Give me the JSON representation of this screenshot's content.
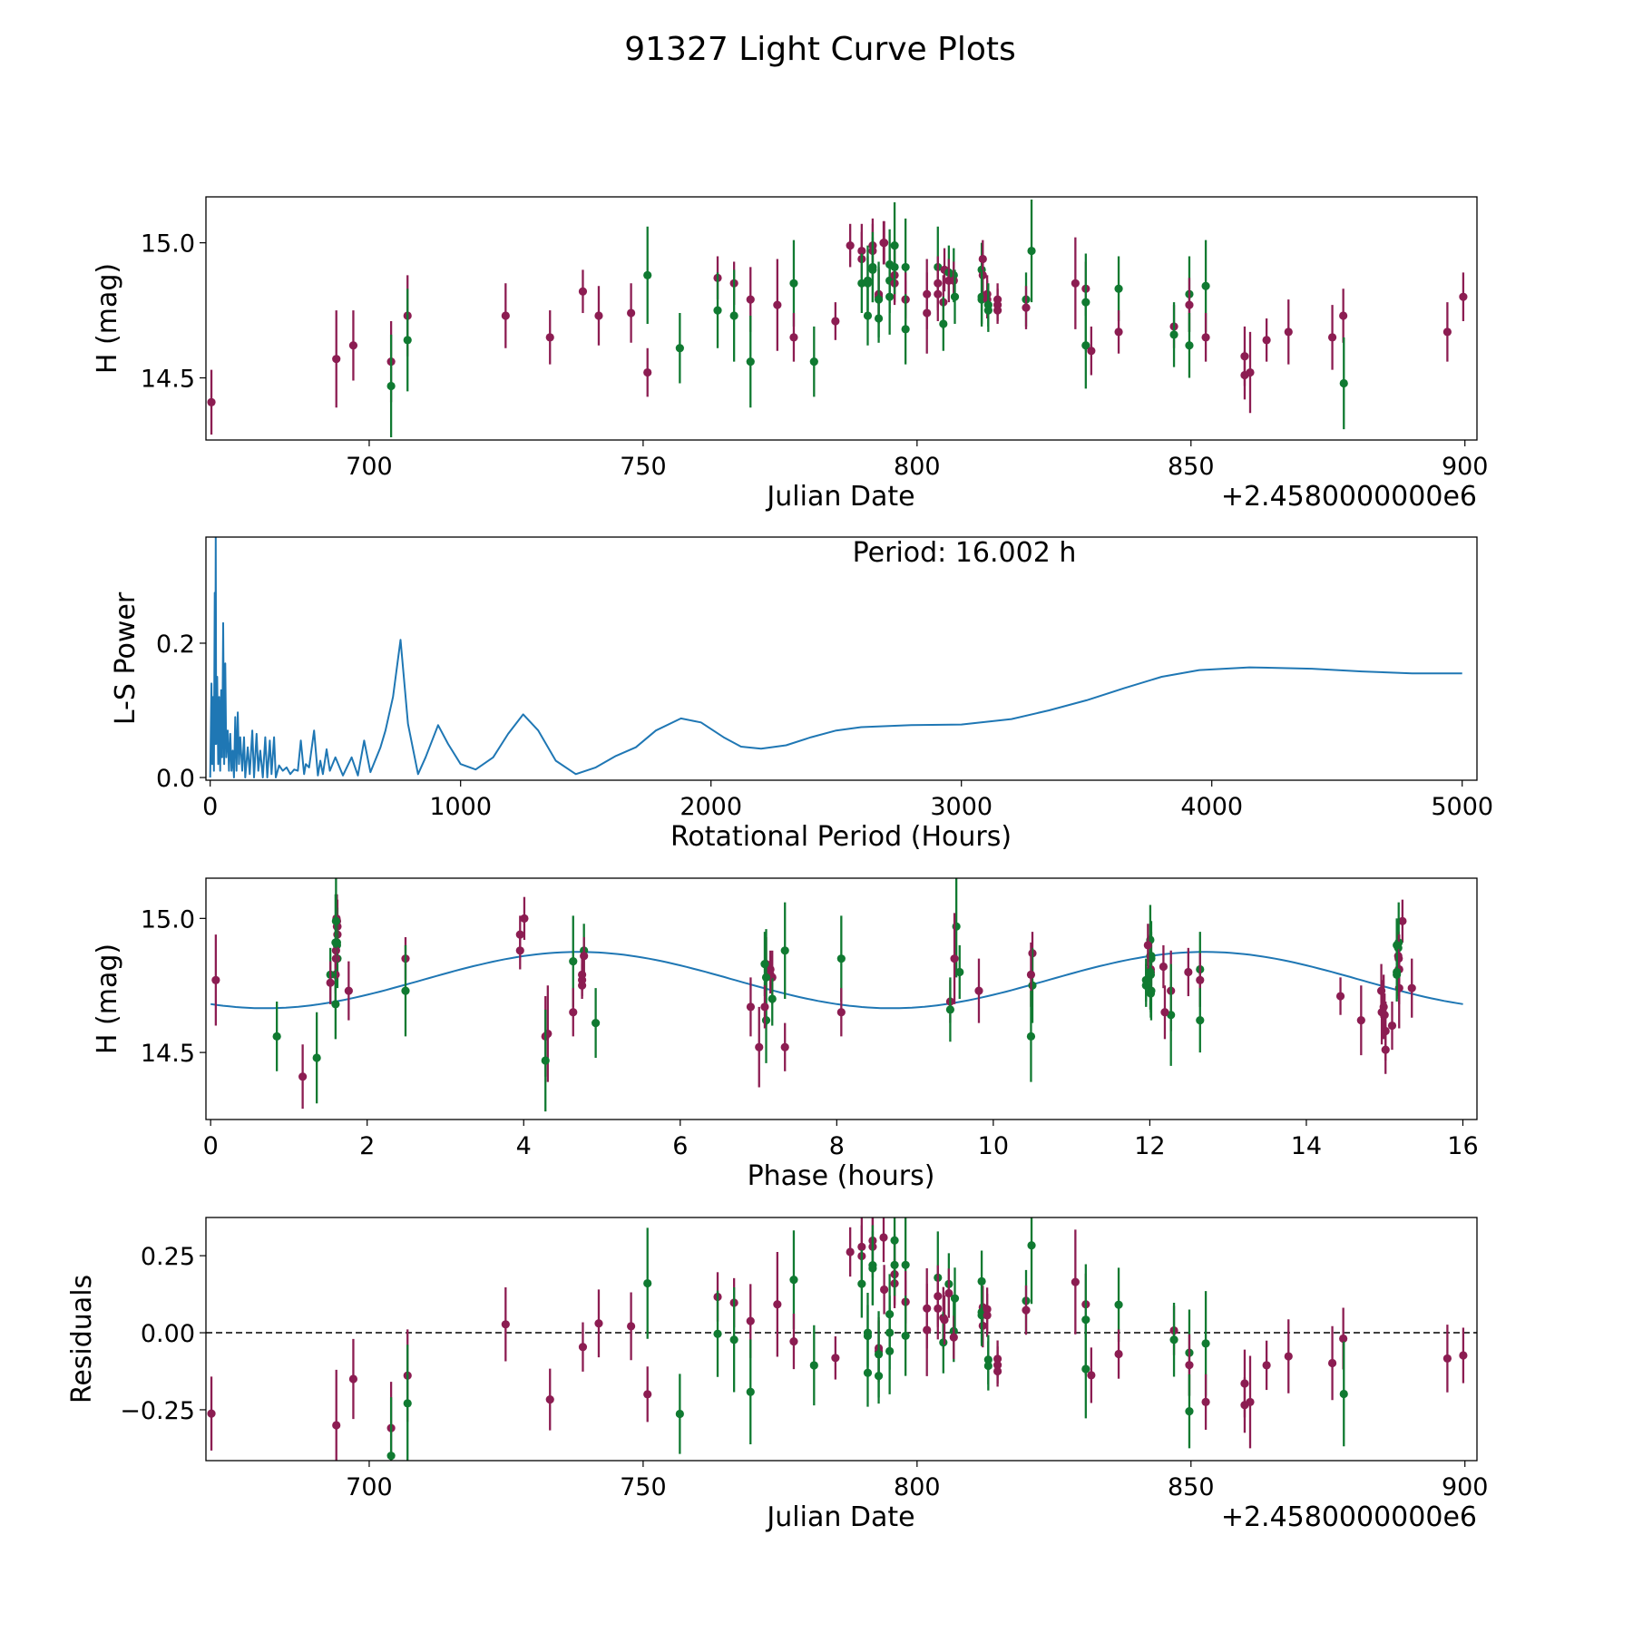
{
  "title": "91327 Light Curve Plots",
  "colors": {
    "band_a": "#8c1d52",
    "band_b": "#107a31",
    "line": "#1f77b4"
  },
  "chart_data": [
    {
      "id": "lightcurve",
      "type": "scatter",
      "xlabel": "Julian Date",
      "ylabel": "H (mag)",
      "offset_text": "+2.4580000000e6",
      "xlim": [
        670.2,
        902.2
      ],
      "ylim": [
        14.27,
        15.17
      ],
      "xticks": [
        700,
        750,
        800,
        850,
        900
      ],
      "xtick_labels": [
        "700",
        "750",
        "800",
        "850",
        "900"
      ],
      "yticks": [
        14.5,
        15.0
      ],
      "ytick_labels": [
        "14.5",
        "15.0"
      ],
      "points_format": [
        "julian_date_offset",
        "H_mag",
        "error",
        "band"
      ],
      "points": [
        [
          671.2,
          14.41,
          0.12,
          "a"
        ],
        [
          694.0,
          14.57,
          0.18,
          "a"
        ],
        [
          697.1,
          14.62,
          0.13,
          "a"
        ],
        [
          704.0,
          14.56,
          0.15,
          "a"
        ],
        [
          704.0,
          14.47,
          0.19,
          "b"
        ],
        [
          707.0,
          14.73,
          0.15,
          "a"
        ],
        [
          707.0,
          14.64,
          0.19,
          "b"
        ],
        [
          724.9,
          14.73,
          0.12,
          "a"
        ],
        [
          733.0,
          14.65,
          0.1,
          "a"
        ],
        [
          739.0,
          14.82,
          0.08,
          "a"
        ],
        [
          741.9,
          14.73,
          0.11,
          "a"
        ],
        [
          747.8,
          14.74,
          0.11,
          "a"
        ],
        [
          750.8,
          14.88,
          0.18,
          "b"
        ],
        [
          750.8,
          14.52,
          0.09,
          "a"
        ],
        [
          756.7,
          14.61,
          0.13,
          "b"
        ],
        [
          763.6,
          14.87,
          0.08,
          "a"
        ],
        [
          763.6,
          14.75,
          0.14,
          "b"
        ],
        [
          766.6,
          14.85,
          0.08,
          "a"
        ],
        [
          766.6,
          14.73,
          0.17,
          "b"
        ],
        [
          769.6,
          14.79,
          0.12,
          "a"
        ],
        [
          769.6,
          14.56,
          0.17,
          "b"
        ],
        [
          774.5,
          14.77,
          0.17,
          "a"
        ],
        [
          777.5,
          14.85,
          0.16,
          "b"
        ],
        [
          777.5,
          14.65,
          0.09,
          "a"
        ],
        [
          781.2,
          14.56,
          0.13,
          "b"
        ],
        [
          785.1,
          14.71,
          0.07,
          "a"
        ],
        [
          787.8,
          14.99,
          0.08,
          "a"
        ],
        [
          789.9,
          14.97,
          0.1,
          "a"
        ],
        [
          789.9,
          14.94,
          0.1,
          "a"
        ],
        [
          789.9,
          14.85,
          0.11,
          "b"
        ],
        [
          791.0,
          14.86,
          0.13,
          "b"
        ],
        [
          791.0,
          14.85,
          0.1,
          "b"
        ],
        [
          791.0,
          14.73,
          0.11,
          "b"
        ],
        [
          791.9,
          14.99,
          0.1,
          "a"
        ],
        [
          791.9,
          14.97,
          0.1,
          "a"
        ],
        [
          791.9,
          14.91,
          0.13,
          "b"
        ],
        [
          791.9,
          14.9,
          0.12,
          "b"
        ],
        [
          793.0,
          14.81,
          0.1,
          "a"
        ],
        [
          793.0,
          14.8,
          0.1,
          "a"
        ],
        [
          793.0,
          14.79,
          0.14,
          "b"
        ],
        [
          793.0,
          14.72,
          0.09,
          "b"
        ],
        [
          793.9,
          15.0,
          0.08,
          "a"
        ],
        [
          794.0,
          15.0,
          0.08,
          "a"
        ],
        [
          795.0,
          14.92,
          0.13,
          "b"
        ],
        [
          795.0,
          14.86,
          0.12,
          "b"
        ],
        [
          795.0,
          14.8,
          0.14,
          "b"
        ],
        [
          795.9,
          14.99,
          0.16,
          "b"
        ],
        [
          795.9,
          14.88,
          0.1,
          "a"
        ],
        [
          795.9,
          14.85,
          0.08,
          "a"
        ],
        [
          795.9,
          14.91,
          0.1,
          "b"
        ],
        [
          797.9,
          14.91,
          0.18,
          "b"
        ],
        [
          797.9,
          14.79,
          0.1,
          "a"
        ],
        [
          797.9,
          14.79,
          0.07,
          "a"
        ],
        [
          797.9,
          14.68,
          0.13,
          "b"
        ],
        [
          801.8,
          14.81,
          0.13,
          "a"
        ],
        [
          801.8,
          14.74,
          0.15,
          "a"
        ],
        [
          803.8,
          14.91,
          0.15,
          "b"
        ],
        [
          803.8,
          14.85,
          0.1,
          "a"
        ],
        [
          803.8,
          14.81,
          0.1,
          "a"
        ],
        [
          804.8,
          14.78,
          0.1,
          "a"
        ],
        [
          804.8,
          14.7,
          0.1,
          "b"
        ],
        [
          805.0,
          14.9,
          0.08,
          "a"
        ],
        [
          805.8,
          14.89,
          0.1,
          "b"
        ],
        [
          805.8,
          14.86,
          0.08,
          "a"
        ],
        [
          806.7,
          14.88,
          0.1,
          "b"
        ],
        [
          806.7,
          14.86,
          0.07,
          "a"
        ],
        [
          806.9,
          14.8,
          0.1,
          "b"
        ],
        [
          811.8,
          14.9,
          0.1,
          "b"
        ],
        [
          812.0,
          14.94,
          0.07,
          "a"
        ],
        [
          812.0,
          14.88,
          0.07,
          "a"
        ],
        [
          811.8,
          14.8,
          0.1,
          "b"
        ],
        [
          811.8,
          14.79,
          0.1,
          "b"
        ],
        [
          812.8,
          14.81,
          0.07,
          "a"
        ],
        [
          812.8,
          14.79,
          0.07,
          "a"
        ],
        [
          813.0,
          14.77,
          0.08,
          "b"
        ],
        [
          813.0,
          14.75,
          0.08,
          "b"
        ],
        [
          814.7,
          14.79,
          0.06,
          "a"
        ],
        [
          814.7,
          14.77,
          0.06,
          "a"
        ],
        [
          814.7,
          14.75,
          0.05,
          "a"
        ],
        [
          819.9,
          14.79,
          0.1,
          "b"
        ],
        [
          819.9,
          14.76,
          0.08,
          "a"
        ],
        [
          820.9,
          14.97,
          0.19,
          "b"
        ],
        [
          828.9,
          14.85,
          0.17,
          "a"
        ],
        [
          830.8,
          14.83,
          0.1,
          "a"
        ],
        [
          830.8,
          14.78,
          0.18,
          "b"
        ],
        [
          830.8,
          14.62,
          0.16,
          "b"
        ],
        [
          831.8,
          14.6,
          0.09,
          "a"
        ],
        [
          836.8,
          14.83,
          0.12,
          "b"
        ],
        [
          836.8,
          14.67,
          0.08,
          "a"
        ],
        [
          846.9,
          14.69,
          0.08,
          "a"
        ],
        [
          846.9,
          14.66,
          0.12,
          "b"
        ],
        [
          849.7,
          14.81,
          0.14,
          "b"
        ],
        [
          849.7,
          14.77,
          0.1,
          "a"
        ],
        [
          849.7,
          14.62,
          0.12,
          "b"
        ],
        [
          852.7,
          14.84,
          0.17,
          "b"
        ],
        [
          852.7,
          14.65,
          0.09,
          "a"
        ],
        [
          859.8,
          14.58,
          0.11,
          "a"
        ],
        [
          859.8,
          14.51,
          0.09,
          "a"
        ],
        [
          860.8,
          14.52,
          0.15,
          "a"
        ],
        [
          863.8,
          14.64,
          0.08,
          "a"
        ],
        [
          867.8,
          14.67,
          0.12,
          "a"
        ],
        [
          875.8,
          14.65,
          0.12,
          "a"
        ],
        [
          877.8,
          14.73,
          0.1,
          "a"
        ],
        [
          877.9,
          14.48,
          0.17,
          "b"
        ],
        [
          896.8,
          14.67,
          0.11,
          "a"
        ],
        [
          899.7,
          14.8,
          0.09,
          "a"
        ]
      ]
    },
    {
      "id": "periodogram",
      "type": "line",
      "xlabel": "Rotational Period (Hours)",
      "ylabel": "L-S Power",
      "annotation": "Period: 16.002 h",
      "xlim": [
        -17,
        5059
      ],
      "ylim": [
        -0.004,
        0.358
      ],
      "xticks": [
        0,
        1000,
        2000,
        3000,
        4000,
        5000
      ],
      "xtick_labels": [
        "0",
        "1000",
        "2000",
        "3000",
        "4000",
        "5000"
      ],
      "yticks": [
        0.0,
        0.2
      ],
      "ytick_labels": [
        "0.0",
        "0.2"
      ],
      "points": [
        [
          0,
          0
        ],
        [
          5,
          0.14
        ],
        [
          8,
          0.02
        ],
        [
          12,
          0.12
        ],
        [
          15,
          0.01
        ],
        [
          18,
          0.275
        ],
        [
          20,
          0.05
        ],
        [
          22,
          0.36
        ],
        [
          24,
          0.05
        ],
        [
          28,
          0.15
        ],
        [
          32,
          0.02
        ],
        [
          36,
          0.12
        ],
        [
          40,
          0.01
        ],
        [
          44,
          0.13
        ],
        [
          48,
          0.03
        ],
        [
          52,
          0.23
        ],
        [
          56,
          0.02
        ],
        [
          60,
          0.17
        ],
        [
          64,
          0.03
        ],
        [
          70,
          0.07
        ],
        [
          75,
          0.01
        ],
        [
          80,
          0.065
        ],
        [
          85,
          0.01
        ],
        [
          90,
          0.04
        ],
        [
          95,
          0.0
        ],
        [
          100,
          0.09
        ],
        [
          105,
          0.01
        ],
        [
          110,
          0.097
        ],
        [
          115,
          0.02
        ],
        [
          120,
          0.06
        ],
        [
          128,
          0.01
        ],
        [
          135,
          0.06
        ],
        [
          140,
          0.0
        ],
        [
          150,
          0.045
        ],
        [
          158,
          0.005
        ],
        [
          168,
          0.07
        ],
        [
          175,
          0.0
        ],
        [
          185,
          0.065
        ],
        [
          192,
          0.01
        ],
        [
          200,
          0.04
        ],
        [
          210,
          0.0
        ],
        [
          220,
          0.06
        ],
        [
          228,
          0.0
        ],
        [
          238,
          0.055
        ],
        [
          245,
          0.005
        ],
        [
          255,
          0.06
        ],
        [
          262,
          0.0
        ],
        [
          275,
          0.018
        ],
        [
          290,
          0.01
        ],
        [
          305,
          0.015
        ],
        [
          320,
          0.005
        ],
        [
          335,
          0.012
        ],
        [
          350,
          0.01
        ],
        [
          362,
          0.055
        ],
        [
          375,
          0.005
        ],
        [
          382,
          0.02
        ],
        [
          395,
          0.015
        ],
        [
          415,
          0.07
        ],
        [
          430,
          0.003
        ],
        [
          440,
          0.025
        ],
        [
          450,
          0.005
        ],
        [
          465,
          0.042
        ],
        [
          478,
          0.01
        ],
        [
          500,
          0.03
        ],
        [
          530,
          0.003
        ],
        [
          565,
          0.03
        ],
        [
          590,
          0.003
        ],
        [
          615,
          0.055
        ],
        [
          640,
          0.008
        ],
        [
          680,
          0.045
        ],
        [
          700,
          0.07
        ],
        [
          730,
          0.12
        ],
        [
          760,
          0.205
        ],
        [
          790,
          0.08
        ],
        [
          830,
          0.005
        ],
        [
          860,
          0.03
        ],
        [
          910,
          0.078
        ],
        [
          950,
          0.05
        ],
        [
          1000,
          0.02
        ],
        [
          1060,
          0.012
        ],
        [
          1130,
          0.03
        ],
        [
          1190,
          0.065
        ],
        [
          1250,
          0.094
        ],
        [
          1310,
          0.07
        ],
        [
          1380,
          0.025
        ],
        [
          1460,
          0.005
        ],
        [
          1540,
          0.015
        ],
        [
          1620,
          0.032
        ],
        [
          1700,
          0.045
        ],
        [
          1780,
          0.07
        ],
        [
          1880,
          0.088
        ],
        [
          1960,
          0.082
        ],
        [
          2050,
          0.06
        ],
        [
          2120,
          0.046
        ],
        [
          2200,
          0.043
        ],
        [
          2300,
          0.048
        ],
        [
          2400,
          0.06
        ],
        [
          2500,
          0.07
        ],
        [
          2600,
          0.075
        ],
        [
          2800,
          0.078
        ],
        [
          3000,
          0.079
        ],
        [
          3200,
          0.087
        ],
        [
          3350,
          0.1
        ],
        [
          3500,
          0.115
        ],
        [
          3650,
          0.133
        ],
        [
          3800,
          0.15
        ],
        [
          3950,
          0.16
        ],
        [
          4150,
          0.164
        ],
        [
          4400,
          0.162
        ],
        [
          4600,
          0.158
        ],
        [
          4800,
          0.155
        ],
        [
          5000,
          0.155
        ]
      ]
    },
    {
      "id": "phased",
      "type": "scatter",
      "xlabel": "Phase (hours)",
      "ylabel": "H (mag)",
      "xlim": [
        -0.06,
        16.18
      ],
      "ylim": [
        14.25,
        15.15
      ],
      "xticks": [
        0,
        2,
        4,
        6,
        8,
        10,
        12,
        14,
        16
      ],
      "xtick_labels": [
        "0",
        "2",
        "4",
        "6",
        "8",
        "10",
        "12",
        "14",
        "16"
      ],
      "yticks": [
        14.5,
        15.0
      ],
      "ytick_labels": [
        "14.5",
        "15.0"
      ],
      "model": {
        "period_hours": 16.002,
        "epoch_offset": 671.151,
        "mean": 14.77,
        "amplitude": 0.105,
        "peak_phase": 4.7
      }
    },
    {
      "id": "residuals",
      "type": "scatter",
      "xlabel": "Julian Date",
      "ylabel": "Residuals",
      "offset_text": "+2.4580000000e6",
      "xlim": [
        670.2,
        902.2
      ],
      "ylim": [
        -0.415,
        0.374
      ],
      "xticks": [
        700,
        750,
        800,
        850,
        900
      ],
      "xtick_labels": [
        "700",
        "750",
        "800",
        "850",
        "900"
      ],
      "yticks": [
        -0.25,
        0.0,
        0.25
      ],
      "ytick_labels": [
        "−0.25",
        "0.00",
        "0.25"
      ],
      "zero_line": 0.0
    }
  ]
}
